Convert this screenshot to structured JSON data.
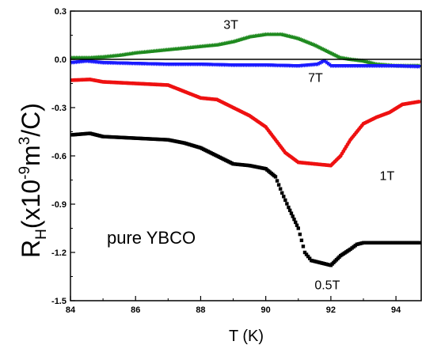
{
  "chart_data": {
    "type": "scatter",
    "title": "",
    "xlabel": "T (K)",
    "ylabel": {
      "main": "R",
      "sub": "H",
      "pre": "(x10",
      "sup1": "-9",
      "mid": "m",
      "sup2": "3",
      "post": "/C)"
    },
    "xlim": [
      84,
      94.8
    ],
    "ylim": [
      -1.5,
      0.3
    ],
    "xticks": [
      84,
      86,
      88,
      90,
      92,
      94
    ],
    "xtick_labels": [
      "84",
      "86",
      "88",
      "90",
      "92",
      "94"
    ],
    "yticks": [
      0.3,
      0.0,
      -0.3,
      -0.6,
      -0.9,
      -1.2,
      -1.5
    ],
    "ytick_labels": [
      "0.3",
      "0.0",
      "-0.3",
      "-0.6",
      "-0.9",
      "-1.2",
      "-1.5"
    ],
    "grid": false,
    "zero_line": true,
    "annotation": "pure YBCO",
    "series": [
      {
        "name": "3T",
        "color": "#1f8a1f",
        "marker": "triangle-up",
        "points": [
          [
            84,
            0.01
          ],
          [
            84.6,
            0.01
          ],
          [
            85,
            0.015
          ],
          [
            85.5,
            0.025
          ],
          [
            86,
            0.04
          ],
          [
            86.5,
            0.05
          ],
          [
            87,
            0.06
          ],
          [
            87.5,
            0.07
          ],
          [
            88,
            0.08
          ],
          [
            88.5,
            0.09
          ],
          [
            89,
            0.11
          ],
          [
            89.5,
            0.14
          ],
          [
            90,
            0.155
          ],
          [
            90.5,
            0.155
          ],
          [
            91,
            0.13
          ],
          [
            91.5,
            0.09
          ],
          [
            92,
            0.04
          ],
          [
            92.3,
            0.01
          ],
          [
            92.6,
            0.0
          ],
          [
            93,
            -0.01
          ],
          [
            93.4,
            -0.03
          ],
          [
            94,
            -0.04
          ],
          [
            94.8,
            -0.04
          ]
        ]
      },
      {
        "name": "7T",
        "color": "#1a1aff",
        "marker": "triangle-down",
        "points": [
          [
            84,
            -0.02
          ],
          [
            84.5,
            -0.01
          ],
          [
            85,
            -0.02
          ],
          [
            86,
            -0.025
          ],
          [
            87,
            -0.03
          ],
          [
            88,
            -0.03
          ],
          [
            89,
            -0.035
          ],
          [
            90,
            -0.035
          ],
          [
            91,
            -0.04
          ],
          [
            91.6,
            -0.03
          ],
          [
            91.8,
            -0.01
          ],
          [
            92,
            -0.04
          ],
          [
            92.5,
            -0.04
          ],
          [
            93,
            -0.04
          ],
          [
            94,
            -0.04
          ],
          [
            94.8,
            -0.045
          ]
        ]
      },
      {
        "name": "1T",
        "color": "#ee1111",
        "marker": "circle",
        "points": [
          [
            84,
            -0.13
          ],
          [
            84.6,
            -0.125
          ],
          [
            85,
            -0.14
          ],
          [
            86,
            -0.15
          ],
          [
            87,
            -0.16
          ],
          [
            87.5,
            -0.2
          ],
          [
            88,
            -0.24
          ],
          [
            88.5,
            -0.25
          ],
          [
            89,
            -0.3
          ],
          [
            89.5,
            -0.35
          ],
          [
            90,
            -0.42
          ],
          [
            90.3,
            -0.5
          ],
          [
            90.6,
            -0.58
          ],
          [
            91,
            -0.64
          ],
          [
            91.5,
            -0.65
          ],
          [
            92,
            -0.66
          ],
          [
            92.3,
            -0.6
          ],
          [
            92.6,
            -0.5
          ],
          [
            93,
            -0.4
          ],
          [
            93.4,
            -0.36
          ],
          [
            93.8,
            -0.33
          ],
          [
            94.2,
            -0.28
          ],
          [
            94.8,
            -0.26
          ]
        ]
      },
      {
        "name": "0.5T",
        "color": "#000000",
        "marker": "square",
        "points": [
          [
            84,
            -0.47
          ],
          [
            84.6,
            -0.46
          ],
          [
            85,
            -0.48
          ],
          [
            86,
            -0.49
          ],
          [
            87,
            -0.5
          ],
          [
            87.5,
            -0.52
          ],
          [
            88,
            -0.55
          ],
          [
            88.5,
            -0.6
          ],
          [
            89,
            -0.65
          ],
          [
            89.5,
            -0.66
          ],
          [
            90,
            -0.68
          ],
          [
            90.3,
            -0.73
          ],
          [
            90.5,
            -0.83
          ],
          [
            90.7,
            -0.92
          ],
          [
            91,
            -1.05
          ],
          [
            91.2,
            -1.2
          ],
          [
            91.4,
            -1.25
          ],
          [
            91.8,
            -1.27
          ],
          [
            92,
            -1.28
          ],
          [
            92.3,
            -1.22
          ],
          [
            92.6,
            -1.18
          ],
          [
            92.8,
            -1.15
          ],
          [
            93,
            -1.14
          ],
          [
            94,
            -1.14
          ],
          [
            94.8,
            -1.14
          ]
        ]
      }
    ],
    "series_labels": [
      {
        "text": "3T",
        "x": 88.7,
        "y": 0.22
      },
      {
        "text": "7T",
        "x": 91.3,
        "y": -0.11
      },
      {
        "text": "1T",
        "x": 93.5,
        "y": -0.72
      },
      {
        "text": "0.5T",
        "x": 91.5,
        "y": -1.4
      }
    ]
  }
}
